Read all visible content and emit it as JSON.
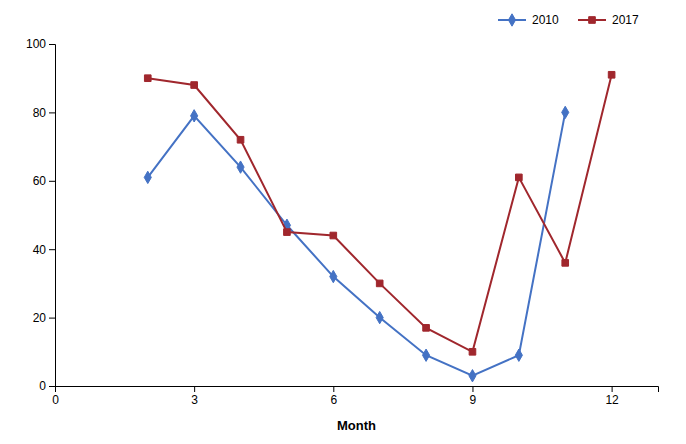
{
  "chart_data": {
    "type": "line",
    "xlabel": "Month",
    "series": [
      {
        "name": "2010",
        "color": "#4472C4",
        "marker": "diamond",
        "line_style": "solid",
        "x": [
          2,
          3,
          4,
          5,
          6,
          7,
          8,
          9,
          10,
          11
        ],
        "values": [
          61,
          79,
          64,
          47,
          32,
          20,
          9,
          3,
          9,
          80
        ]
      },
      {
        "name": "2017",
        "color": "#A0272D",
        "marker": "square",
        "line_style": "solid",
        "x": [
          2,
          3,
          4,
          5,
          6,
          7,
          8,
          9,
          10,
          11,
          12
        ],
        "values": [
          90,
          88,
          72,
          45,
          44,
          30,
          17,
          10,
          61,
          36,
          91
        ]
      }
    ],
    "xlim": [
      0,
      13
    ],
    "xticks": [
      0,
      3,
      6,
      9,
      12
    ],
    "ylim": [
      0,
      100
    ],
    "yticks": [
      0,
      20,
      40,
      60,
      80,
      100
    ],
    "grid": false,
    "legend": "upper right"
  }
}
